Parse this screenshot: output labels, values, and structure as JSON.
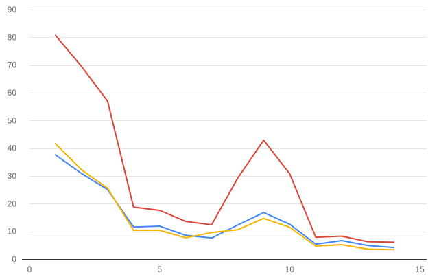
{
  "chart_data": {
    "type": "line",
    "title": "",
    "xlabel": "",
    "ylabel": "",
    "xlim": [
      0,
      15
    ],
    "ylim": [
      0,
      90
    ],
    "x_ticks": [
      0,
      5,
      10,
      15
    ],
    "y_ticks": [
      0,
      10,
      20,
      30,
      40,
      50,
      60,
      70,
      80,
      90
    ],
    "grid": "horizontal",
    "legend": "none",
    "x": [
      1,
      2,
      3,
      4,
      5,
      6,
      7,
      8,
      9,
      10,
      11,
      12,
      13,
      14
    ],
    "series": [
      {
        "color": "#db4437",
        "values": [
          80.7,
          69.5,
          57.0,
          18.8,
          17.6,
          13.6,
          12.4,
          29.2,
          42.9,
          30.8,
          7.9,
          8.3,
          6.3,
          6.1
        ]
      },
      {
        "color": "#4285f4",
        "values": [
          37.6,
          30.9,
          25.1,
          11.6,
          11.9,
          8.6,
          7.6,
          12.3,
          16.8,
          12.6,
          5.4,
          6.7,
          4.9,
          4.2
        ]
      },
      {
        "color": "#f4b400",
        "values": [
          41.6,
          32.2,
          25.6,
          10.4,
          10.4,
          7.7,
          9.6,
          10.6,
          14.7,
          11.5,
          4.7,
          5.2,
          3.6,
          3.4
        ]
      }
    ]
  }
}
